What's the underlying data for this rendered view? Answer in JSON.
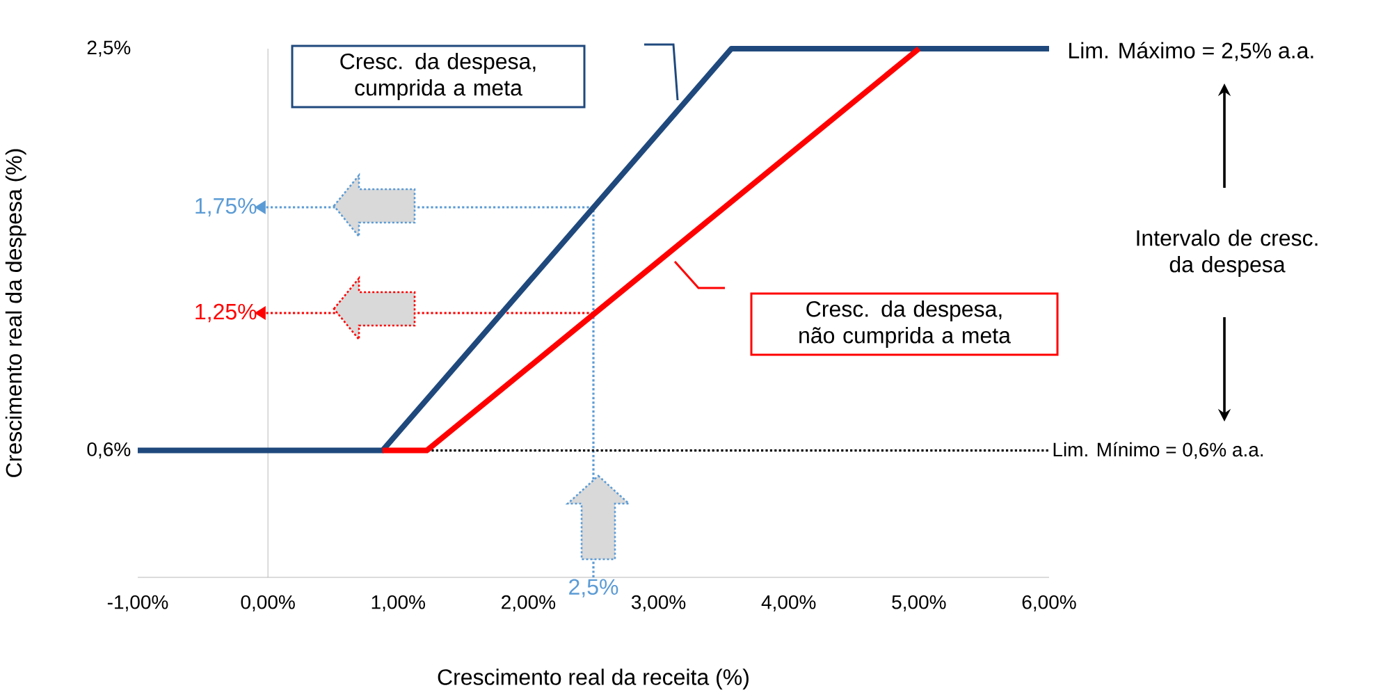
{
  "chart_data": {
    "type": "line",
    "xlabel": "Crescimento real da receita (%)",
    "ylabel": "Crescimento real da despesa (%)",
    "xlim": [
      -1,
      6
    ],
    "xticks": [
      {
        "value": -1,
        "label": "-1,00%"
      },
      {
        "value": 0,
        "label": "0,00%"
      },
      {
        "value": 1,
        "label": "1,00%"
      },
      {
        "value": 2,
        "label": "2,00%"
      },
      {
        "value": 3,
        "label": "3,00%"
      },
      {
        "value": 4,
        "label": "4,00%"
      },
      {
        "value": 5,
        "label": "5,00%"
      },
      {
        "value": 6,
        "label": "6,00%"
      }
    ],
    "ylim": [
      0,
      2.5
    ],
    "yticks": [
      {
        "value": 0.6,
        "label": "0,6%"
      },
      {
        "value": 2.5,
        "label": "2,5%"
      }
    ],
    "marker": "none",
    "line_style": "solid",
    "series": [
      {
        "color": "#1f497d",
        "x": [
          -1,
          0.88,
          3.56,
          6
        ],
        "values": [
          0.6,
          0.6,
          2.5,
          2.5
        ]
      },
      {
        "color": "#ff0000",
        "x": [
          0.88,
          1.22,
          5.0
        ],
        "values": [
          0.6,
          0.6,
          2.5
        ]
      }
    ],
    "ref_lines": [
      {
        "axis": "x",
        "value": 2.5,
        "label": "2,5%",
        "color": "#5b9bd5",
        "line_style": "dotted"
      },
      {
        "axis": "y",
        "value": 1.75,
        "label": "1,75%",
        "color": "#5b9bd5",
        "line_style": "dotted"
      },
      {
        "axis": "y",
        "value": 1.25,
        "label": "1,25%",
        "color": "#ff0000",
        "line_style": "dotted"
      },
      {
        "axis": "y",
        "value": 0.6,
        "label": "Lim. Mínimo = 0,6% a.a.",
        "color": "#000000",
        "line_style": "dotted"
      }
    ],
    "annotations": [
      "Cresc. da despesa, cumprida a meta",
      "Cresc. da despesa, não cumprida a meta",
      "Lim. Máximo = 2,5% a.a.",
      "Intervalo de cresc. da despesa"
    ]
  }
}
